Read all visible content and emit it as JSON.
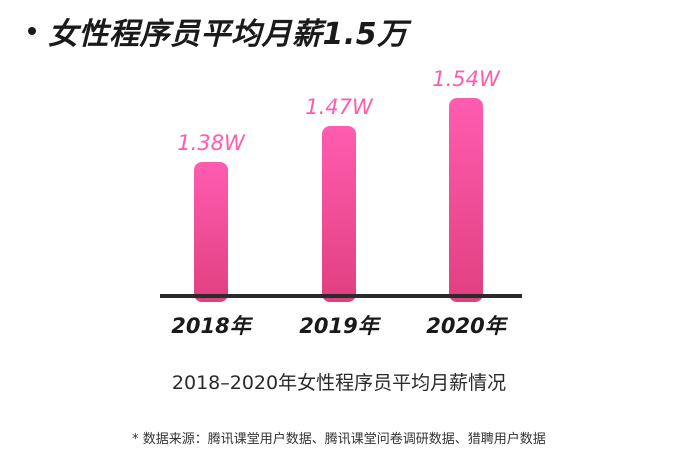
{
  "headline": "女性程序员平均月薪1.5万",
  "chart_data": {
    "type": "bar",
    "categories": [
      "2018年",
      "2019年",
      "2020年"
    ],
    "values": [
      1.38,
      1.47,
      1.54
    ],
    "value_labels": [
      "1.38W",
      "1.47W",
      "1.54W"
    ],
    "title": "2018–2020年女性程序员平均月薪情况",
    "xlabel": "",
    "ylabel": "",
    "grid": false,
    "colors": {
      "bar_top": "#ff5cb0",
      "bar_bottom": "#e0407f",
      "value_label": "#ff5cae",
      "baseline": "#2b2b2b"
    }
  },
  "source_note": "* 数据来源：腾讯课堂用户数据、腾讯课堂问卷调研数据、猎聘用户数据"
}
